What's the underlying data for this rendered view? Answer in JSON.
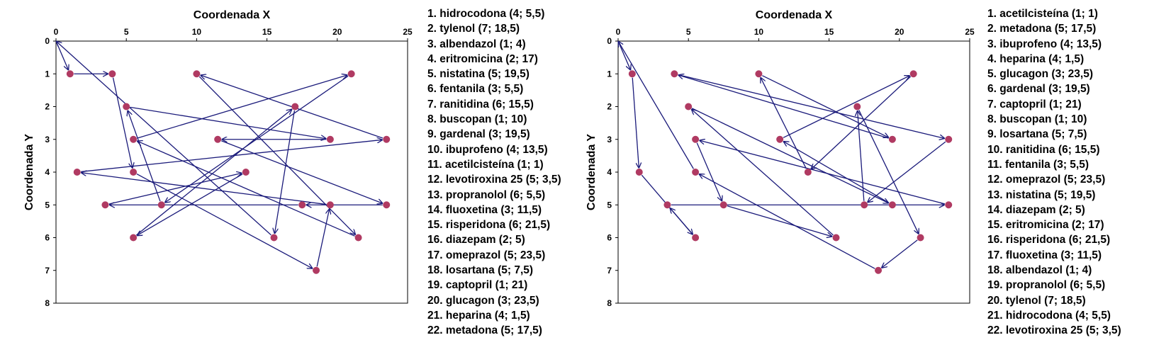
{
  "colors": {
    "route": "#1a1a7a",
    "point": "#b03a62",
    "axis": "#000000"
  },
  "chart_data": [
    {
      "type": "scatter",
      "xlabel": "Coordenada X",
      "ylabel": "Coordenada Y",
      "xlim": [
        0,
        25
      ],
      "ylim": [
        0,
        8
      ],
      "y_inverted": true,
      "x_axis_position": "top",
      "xticks": [
        0,
        5,
        10,
        15,
        20,
        25
      ],
      "yticks": [
        0,
        1,
        2,
        3,
        4,
        5,
        6,
        7,
        8
      ],
      "grid": false,
      "depot": [
        0,
        0
      ],
      "route_order": [
        0,
        11,
        3,
        1,
        2,
        5,
        21,
        20,
        8,
        15,
        6,
        19,
        18,
        16,
        9,
        14,
        17,
        22,
        12,
        10,
        13,
        4,
        7,
        0
      ],
      "points": [
        {
          "label": "1. hidrocodona (4; 5,5)",
          "x": 5.5,
          "y": 4
        },
        {
          "label": "2. tylenol (7; 18,5)",
          "x": 18.5,
          "y": 7
        },
        {
          "label": "3. albendazol (1; 4)",
          "x": 4,
          "y": 1
        },
        {
          "label": "4. eritromicina (2; 17)",
          "x": 17,
          "y": 2
        },
        {
          "label": "5. nistatina (5; 19,5)",
          "x": 19.5,
          "y": 5
        },
        {
          "label": "6. fentanila (3; 5,5)",
          "x": 5.5,
          "y": 3
        },
        {
          "label": "7. ranitidina (6; 15,5)",
          "x": 15.5,
          "y": 6
        },
        {
          "label": "8. buscopan (1; 10)",
          "x": 10,
          "y": 1
        },
        {
          "label": "9. gardenal (3; 19,5)",
          "x": 19.5,
          "y": 3
        },
        {
          "label": "10. ibuprofeno (4; 13,5)",
          "x": 13.5,
          "y": 4
        },
        {
          "label": "11. acetilcisteína (1; 1)",
          "x": 1,
          "y": 1
        },
        {
          "label": "12. levotiroxina 25 (5; 3,5)",
          "x": 3.5,
          "y": 5
        },
        {
          "label": "13. propranolol (6; 5,5)",
          "x": 5.5,
          "y": 6
        },
        {
          "label": "14. fluoxetina (3; 11,5)",
          "x": 11.5,
          "y": 3
        },
        {
          "label": "15. risperidona (6; 21,5)",
          "x": 21.5,
          "y": 6
        },
        {
          "label": "16. diazepam (2; 5)",
          "x": 5,
          "y": 2
        },
        {
          "label": "17. omeprazol (5; 23,5)",
          "x": 23.5,
          "y": 5
        },
        {
          "label": "18. losartana (5; 7,5)",
          "x": 7.5,
          "y": 5
        },
        {
          "label": "19. captopril (1; 21)",
          "x": 21,
          "y": 1
        },
        {
          "label": "20. glucagon (3; 23,5)",
          "x": 23.5,
          "y": 3
        },
        {
          "label": "21. heparina (4; 1,5)",
          "x": 1.5,
          "y": 4
        },
        {
          "label": "22. metadona (5; 17,5)",
          "x": 17.5,
          "y": 5
        }
      ]
    },
    {
      "type": "scatter",
      "xlabel": "Coordenada X",
      "ylabel": "Coordenada Y",
      "xlim": [
        0,
        25
      ],
      "ylim": [
        0,
        8
      ],
      "y_inverted": true,
      "x_axis_position": "top",
      "xticks": [
        0,
        5,
        10,
        15,
        20,
        25
      ],
      "yticks": [
        0,
        1,
        2,
        3,
        4,
        5,
        6,
        7,
        8
      ],
      "grid": false,
      "depot": [
        0,
        0
      ],
      "route_order": [
        0,
        1,
        4,
        19,
        22,
        12,
        11,
        9,
        10,
        14,
        13,
        17,
        7,
        3,
        8,
        6,
        18,
        5,
        2,
        15,
        16,
        20,
        21,
        0
      ],
      "points": [
        {
          "label": "1. acetilcisteína (1; 1)",
          "x": 1,
          "y": 1
        },
        {
          "label": "2. metadona (5; 17,5)",
          "x": 17.5,
          "y": 5
        },
        {
          "label": "3. ibuprofeno (4; 13,5)",
          "x": 13.5,
          "y": 4
        },
        {
          "label": "4. heparina (4; 1,5)",
          "x": 1.5,
          "y": 4
        },
        {
          "label": "5. glucagon (3; 23,5)",
          "x": 23.5,
          "y": 3
        },
        {
          "label": "6. gardenal (3; 19,5)",
          "x": 19.5,
          "y": 3
        },
        {
          "label": "7. captopril (1; 21)",
          "x": 21,
          "y": 1
        },
        {
          "label": "8. buscopan (1; 10)",
          "x": 10,
          "y": 1
        },
        {
          "label": "9. losartana (5; 7,5)",
          "x": 7.5,
          "y": 5
        },
        {
          "label": "10. ranitidina (6; 15,5)",
          "x": 15.5,
          "y": 6
        },
        {
          "label": "11. fentanila (3; 5,5)",
          "x": 5.5,
          "y": 3
        },
        {
          "label": "12. omeprazol (5; 23,5)",
          "x": 23.5,
          "y": 5
        },
        {
          "label": "13. nistatina (5; 19,5)",
          "x": 19.5,
          "y": 5
        },
        {
          "label": "14. diazepam (2; 5)",
          "x": 5,
          "y": 2
        },
        {
          "label": "15. eritromicina (2; 17)",
          "x": 17,
          "y": 2
        },
        {
          "label": "16. risperidona (6; 21,5)",
          "x": 21.5,
          "y": 6
        },
        {
          "label": "17. fluoxetina (3; 11,5)",
          "x": 11.5,
          "y": 3
        },
        {
          "label": "18. albendazol (1; 4)",
          "x": 4,
          "y": 1
        },
        {
          "label": "19. propranolol (6; 5,5)",
          "x": 5.5,
          "y": 6
        },
        {
          "label": "20. tylenol (7; 18,5)",
          "x": 18.5,
          "y": 7
        },
        {
          "label": "21. hidrocodona (4; 5,5)",
          "x": 5.5,
          "y": 4
        },
        {
          "label": "22. levotiroxina 25 (5; 3,5)",
          "x": 3.5,
          "y": 5
        }
      ]
    }
  ]
}
